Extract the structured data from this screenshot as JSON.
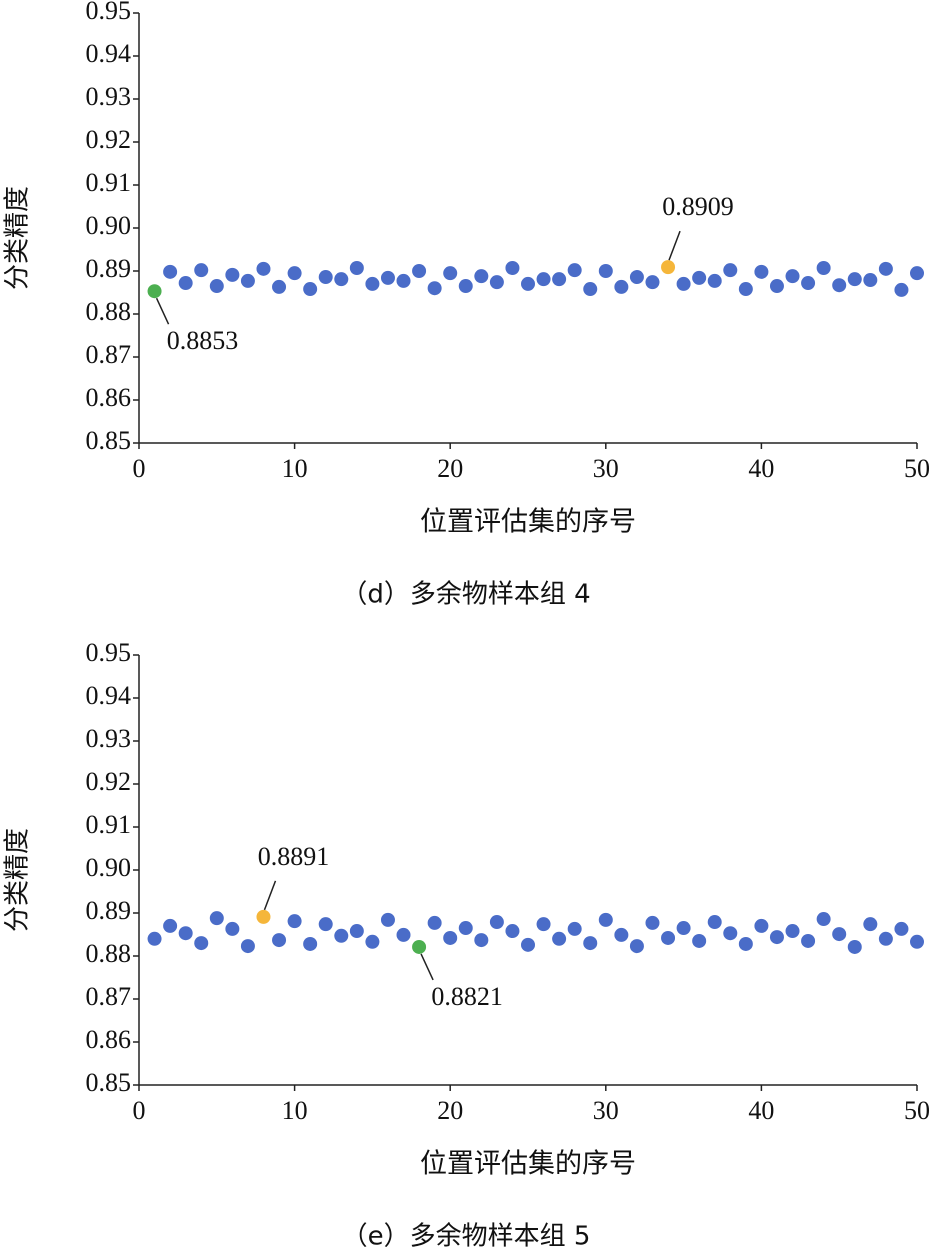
{
  "chart_data": [
    {
      "type": "scatter",
      "ylabel": "分类精度",
      "xlabel": "位置评估集的序号",
      "caption": "（d）多余物样本组 4",
      "xlim": [
        0,
        50
      ],
      "xticks": [
        0,
        10,
        20,
        30,
        40,
        50
      ],
      "ylim": [
        0.85,
        0.95
      ],
      "yticks": [
        0.85,
        0.86,
        0.87,
        0.88,
        0.89,
        {
          "value": 0.9,
          "label": "0.90"
        },
        0.91,
        0.92,
        0.93,
        0.94,
        0.95
      ],
      "x": [
        1,
        2,
        3,
        4,
        5,
        6,
        7,
        8,
        9,
        10,
        11,
        12,
        13,
        14,
        15,
        16,
        17,
        18,
        19,
        20,
        21,
        22,
        23,
        24,
        25,
        26,
        27,
        28,
        29,
        30,
        31,
        32,
        33,
        34,
        35,
        36,
        37,
        38,
        39,
        40,
        41,
        42,
        43,
        44,
        45,
        46,
        47,
        48,
        49,
        50
      ],
      "series": [
        {
          "color": "#4a6cc8",
          "values": [
            0.8853,
            0.8898,
            0.8872,
            0.8902,
            0.8865,
            0.8891,
            0.8877,
            0.8905,
            0.8863,
            0.8895,
            0.8858,
            0.8886,
            0.8881,
            0.8907,
            0.887,
            0.8884,
            0.8877,
            0.89,
            0.886,
            0.8895,
            0.8865,
            0.8888,
            0.8874,
            0.8907,
            0.887,
            0.8881,
            0.8881,
            0.8902,
            0.8858,
            0.89,
            0.8863,
            0.8886,
            0.8874,
            0.8909,
            0.887,
            0.8884,
            0.8877,
            0.8902,
            0.8858,
            0.8898,
            0.8865,
            0.8888,
            0.8872,
            0.8907,
            0.8867,
            0.8881,
            0.8879,
            0.8905,
            0.8856,
            0.8895
          ]
        }
      ],
      "highlights": [
        {
          "index": 0,
          "color": "#4caf50",
          "label": "0.8853",
          "label_position": "below"
        },
        {
          "index": 33,
          "color": "#f5b63a",
          "label": "0.8909",
          "label_position": "above"
        }
      ]
    },
    {
      "type": "scatter",
      "ylabel": "分类精度",
      "xlabel": "位置评估集的序号",
      "caption": "（e）多余物样本组 5",
      "xlim": [
        0,
        50
      ],
      "xticks": [
        0,
        10,
        20,
        30,
        40,
        50
      ],
      "ylim": [
        0.85,
        0.95
      ],
      "yticks": [
        0.85,
        0.86,
        0.87,
        0.88,
        0.89,
        {
          "value": 0.9,
          "label": "0.90"
        },
        0.91,
        0.92,
        0.93,
        0.94,
        0.95
      ],
      "x": [
        1,
        2,
        3,
        4,
        5,
        6,
        7,
        8,
        9,
        10,
        11,
        12,
        13,
        14,
        15,
        16,
        17,
        18,
        19,
        20,
        21,
        22,
        23,
        24,
        25,
        26,
        27,
        28,
        29,
        30,
        31,
        32,
        33,
        34,
        35,
        36,
        37,
        38,
        39,
        40,
        41,
        42,
        43,
        44,
        45,
        46,
        47,
        48,
        49,
        50
      ],
      "series": [
        {
          "color": "#4a6cc8",
          "values": [
            0.884,
            0.887,
            0.8853,
            0.883,
            0.8888,
            0.8863,
            0.8823,
            0.8891,
            0.8837,
            0.8881,
            0.8828,
            0.8874,
            0.8847,
            0.8858,
            0.8833,
            0.8884,
            0.8849,
            0.8821,
            0.8877,
            0.8842,
            0.8865,
            0.8837,
            0.8879,
            0.8858,
            0.8826,
            0.8874,
            0.884,
            0.8863,
            0.883,
            0.8884,
            0.8849,
            0.8823,
            0.8877,
            0.8842,
            0.8865,
            0.8835,
            0.8879,
            0.8853,
            0.8828,
            0.887,
            0.8844,
            0.8858,
            0.8835,
            0.8886,
            0.8851,
            0.8821,
            0.8874,
            0.884,
            0.8863,
            0.8833
          ]
        }
      ],
      "highlights": [
        {
          "index": 7,
          "color": "#f5b63a",
          "label": "0.8891",
          "label_position": "above"
        },
        {
          "index": 17,
          "color": "#4caf50",
          "label": "0.8821",
          "label_position": "below"
        }
      ]
    }
  ]
}
